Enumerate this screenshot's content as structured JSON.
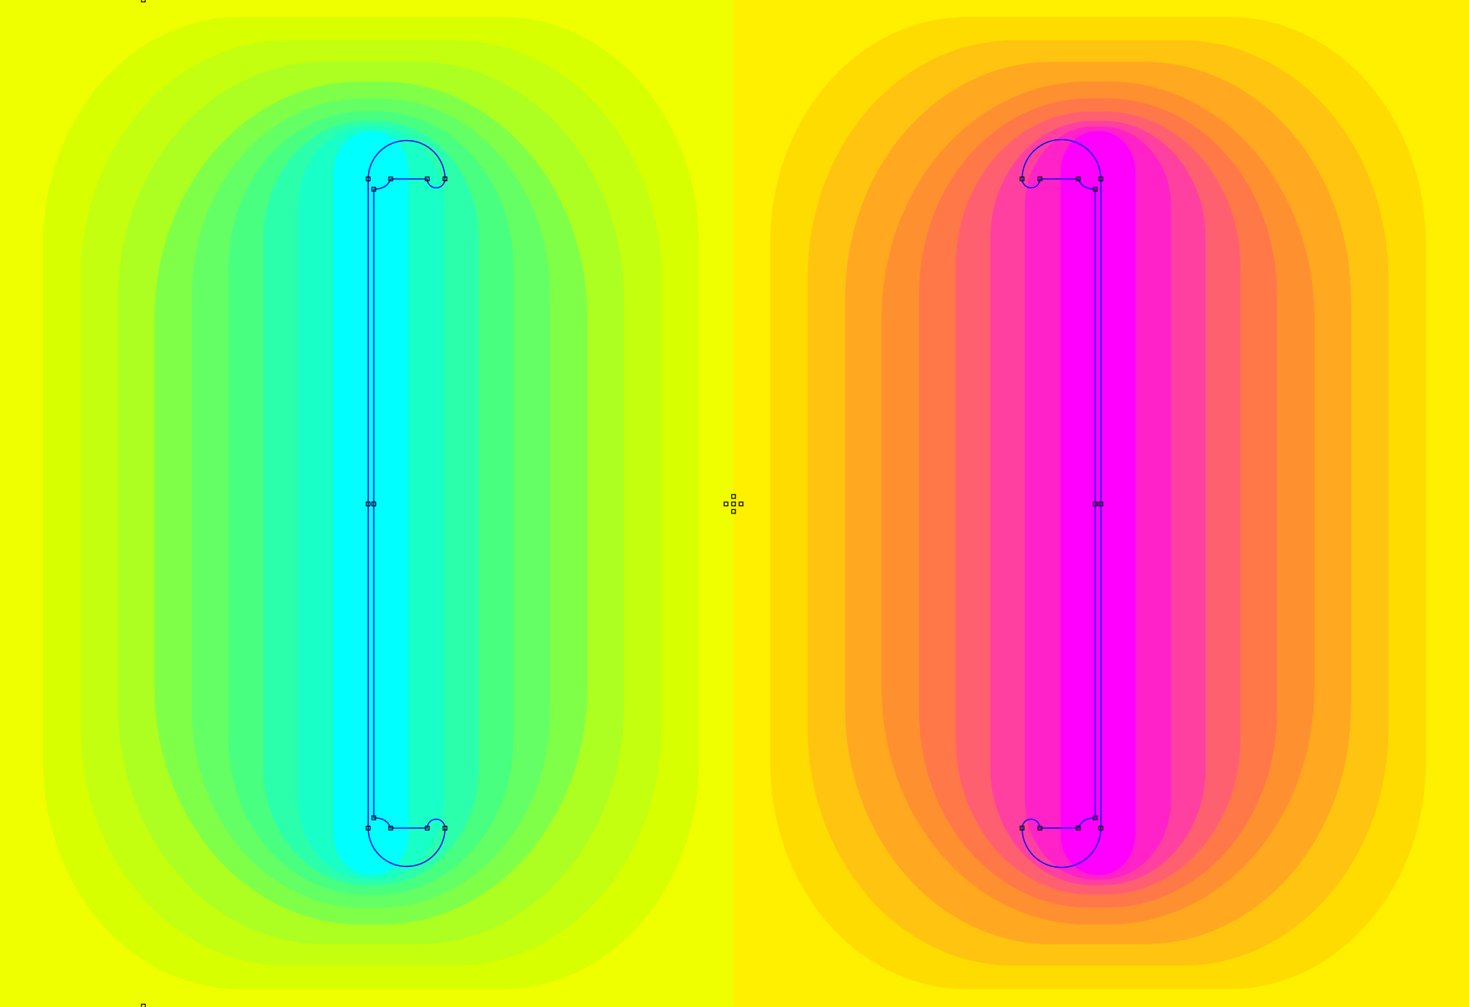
{
  "plot": {
    "left_region": {
      "background": "#f0ff00",
      "bands": [
        "#d8ff00",
        "#c4ff10",
        "#acff20",
        "#80ff48",
        "#64ff64",
        "#48ff80",
        "#2cffac",
        "#18ffc8",
        "#00ffff"
      ]
    },
    "right_region": {
      "background": "#fff000",
      "bands": [
        "#ffdc00",
        "#ffc410",
        "#ffa820",
        "#ff9030",
        "#ff7848",
        "#ff6070",
        "#ff40a0",
        "#ff22c8",
        "#ff00ff"
      ]
    },
    "outline_color": "#0000ff",
    "node_color": "#000000"
  }
}
